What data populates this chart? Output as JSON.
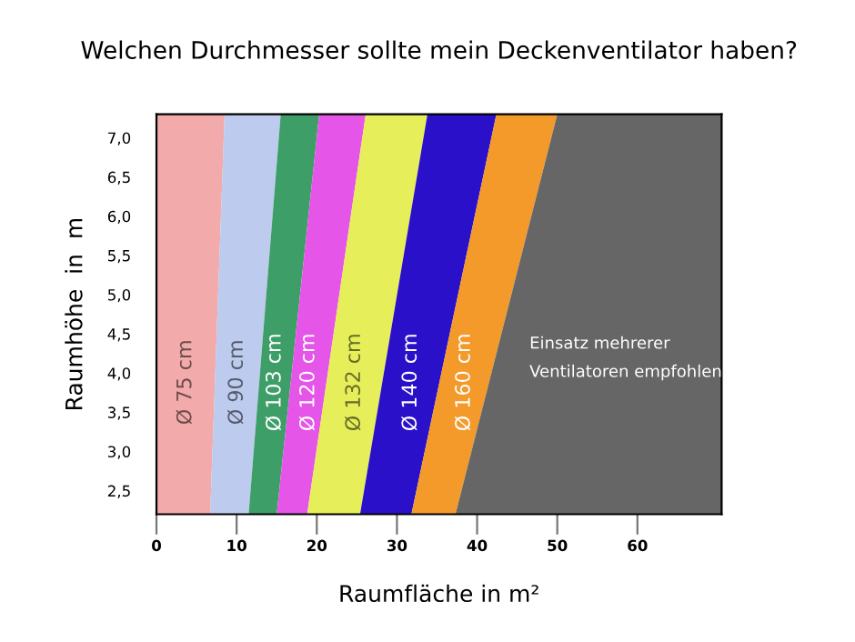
{
  "chart_data": {
    "type": "area",
    "orientation": "horizontal",
    "stacked": true,
    "title": "Welchen Durchmesser sollte mein Deckenventilator haben?",
    "xlabel": "Raumfläche in m²",
    "ylabel": "Raumhöhe  in  m",
    "x": [
      2.2,
      7.3
    ],
    "series": [
      {
        "name": "Ø 75 cm",
        "color": "#f2aaaa",
        "values": [
          6.7,
          8.5
        ]
      },
      {
        "name": "Ø 90 cm",
        "color": "#bccbee",
        "values": [
          4.8,
          7.0
        ]
      },
      {
        "name": "Ø 103 cm",
        "color": "#3e9e68",
        "values": [
          3.5,
          4.8
        ]
      },
      {
        "name": "Ø 120 cm",
        "color": "#e455e8",
        "values": [
          3.8,
          5.8
        ]
      },
      {
        "name": "Ø 132 cm",
        "color": "#e6ef5a",
        "values": [
          6.6,
          7.7
        ]
      },
      {
        "name": "Ø 140 cm",
        "color": "#2a10c8",
        "values": [
          6.4,
          8.6
        ]
      },
      {
        "name": "Ø 160 cm",
        "color": "#f39a2a",
        "values": [
          5.5,
          7.6
        ]
      },
      {
        "color": "#666666",
        "values": [
          33.2,
          20.5
        ]
      }
    ],
    "annotations": [
      "Einsatz mehrerer\nVentilatoren empfohlen"
    ],
    "xlim": [
      0,
      70.5
    ],
    "ylim": [
      2.2,
      7.3
    ],
    "xticks": [
      0,
      10,
      20,
      30,
      40,
      50,
      60
    ],
    "yticks": [
      {
        "value": 2.5,
        "label": "2,5"
      },
      {
        "value": 3.0,
        "label": "3,0"
      },
      {
        "value": 3.5,
        "label": "3,5"
      },
      {
        "value": 4.0,
        "label": "4,0"
      },
      {
        "value": 4.5,
        "label": "4,5"
      },
      {
        "value": 5.0,
        "label": "5,0"
      },
      {
        "value": 5.5,
        "label": "5,5"
      },
      {
        "value": 6.0,
        "label": "6,0"
      },
      {
        "value": 6.5,
        "label": "6,5"
      },
      {
        "value": 7.0,
        "label": "7,0"
      }
    ],
    "grid": false,
    "legend": false
  }
}
